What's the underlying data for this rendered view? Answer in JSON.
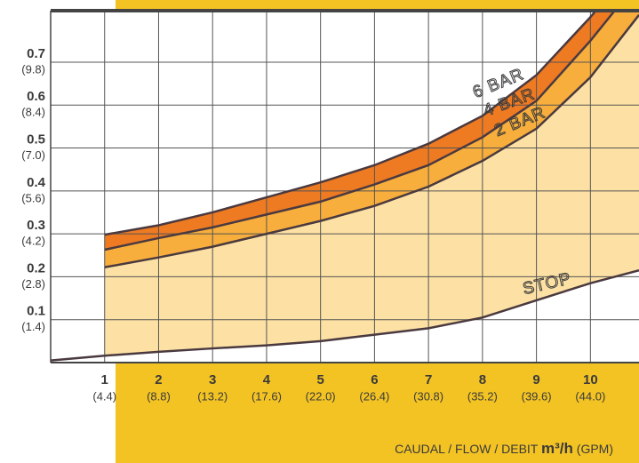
{
  "chart_data": {
    "type": "area",
    "xlabel": {
      "text": "CAUDAL / FLOW / DEBIT",
      "unit": "m³/h",
      "paren": "(GPM)"
    },
    "xlim": [
      0,
      10.9
    ],
    "ylim": [
      0,
      0.82
    ],
    "xticks": [
      1,
      2,
      3,
      4,
      5,
      6,
      7,
      8,
      9,
      10
    ],
    "xticks_secondary": [
      {
        "value": 1,
        "label": "(4.4)"
      },
      {
        "value": 2,
        "label": "(8.8)"
      },
      {
        "value": 3,
        "label": "(13.2)"
      },
      {
        "value": 4,
        "label": "(17.6)"
      },
      {
        "value": 5,
        "label": "(22.0)"
      },
      {
        "value": 6,
        "label": "(26.4)"
      },
      {
        "value": 7,
        "label": "(30.8)"
      },
      {
        "value": 8,
        "label": "(35.2)"
      },
      {
        "value": 9,
        "label": "(39.6)"
      },
      {
        "value": 10,
        "label": "(44.0)"
      }
    ],
    "yticks": [
      0.1,
      0.2,
      0.3,
      0.4,
      0.5,
      0.6,
      0.7
    ],
    "yticks_secondary": [
      {
        "value": 0.1,
        "label": "(1.4)"
      },
      {
        "value": 0.2,
        "label": "(2.8)"
      },
      {
        "value": 0.3,
        "label": "(4.2)"
      },
      {
        "value": 0.4,
        "label": "(5.6)"
      },
      {
        "value": 0.5,
        "label": "(7.0)"
      },
      {
        "value": 0.6,
        "label": "(8.4)"
      },
      {
        "value": 0.7,
        "label": "(9.8)"
      }
    ],
    "grid": true,
    "series": [
      {
        "name": "6 BAR",
        "color": "#ee7a22",
        "x": [
          1,
          2,
          3,
          4,
          5,
          6,
          7,
          8,
          9,
          10,
          10.1
        ],
        "values": [
          0.298,
          0.32,
          0.35,
          0.385,
          0.42,
          0.46,
          0.51,
          0.575,
          0.67,
          0.805,
          0.82
        ]
      },
      {
        "name": "4 BAR",
        "color": "#f7ae3c",
        "x": [
          1,
          2,
          3,
          4,
          5,
          6,
          7,
          8,
          9,
          10,
          10.45
        ],
        "values": [
          0.263,
          0.29,
          0.315,
          0.345,
          0.375,
          0.415,
          0.46,
          0.525,
          0.61,
          0.75,
          0.82
        ]
      },
      {
        "name": "2 BAR",
        "color": "#fde1a4",
        "x": [
          1,
          2,
          3,
          4,
          5,
          6,
          7,
          8,
          9,
          10,
          10.9
        ],
        "values": [
          0.222,
          0.245,
          0.27,
          0.3,
          0.33,
          0.365,
          0.41,
          0.47,
          0.545,
          0.665,
          0.81
        ]
      },
      {
        "name": "STOP",
        "color": "#ffffff",
        "x": [
          0,
          1,
          2,
          3,
          4,
          5,
          6,
          7,
          8,
          9,
          10,
          10.9
        ],
        "values": [
          0.005,
          0.016,
          0.025,
          0.033,
          0.04,
          0.05,
          0.065,
          0.08,
          0.105,
          0.145,
          0.185,
          0.215
        ]
      }
    ]
  }
}
